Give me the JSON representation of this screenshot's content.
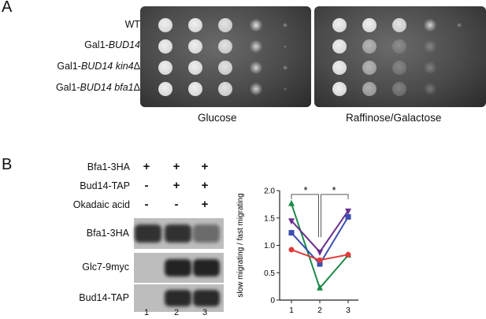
{
  "panel_a": {
    "letter": "A",
    "strains": [
      {
        "prefix": "WT",
        "gene": "",
        "suffix": ""
      },
      {
        "prefix": "Gal1-",
        "gene": "BUD14",
        "suffix": ""
      },
      {
        "prefix": "Gal1-",
        "gene": "BUD14 kin4",
        "suffix": "Δ"
      },
      {
        "prefix": "Gal1-",
        "gene": "BUD14 bfa1",
        "suffix": "Δ"
      }
    ],
    "plates": [
      {
        "label": "Glucose",
        "growth": [
          [
            1,
            1,
            0.9,
            0.7,
            0.2
          ],
          [
            1,
            1,
            0.9,
            0.6,
            0.08
          ],
          [
            1,
            1,
            0.9,
            0.6,
            0.2
          ],
          [
            1,
            1,
            0.9,
            0.6,
            0.1
          ]
        ]
      },
      {
        "label": "Raffinose/Galactose",
        "growth": [
          [
            1,
            1,
            0.9,
            0.6,
            0.2
          ],
          [
            1,
            0.55,
            0.25,
            0.06,
            0
          ],
          [
            1,
            0.55,
            0.2,
            0.05,
            0
          ],
          [
            1,
            0.5,
            0.15,
            0.04,
            0
          ]
        ]
      }
    ]
  },
  "panel_b": {
    "letter": "B",
    "conditions": [
      {
        "label": "Bfa1-3HA",
        "signs": [
          "+",
          "+",
          "+"
        ]
      },
      {
        "label": "Bud14-TAP",
        "signs": [
          "-",
          "+",
          "+"
        ]
      },
      {
        "label": "Okadaic acid",
        "signs": [
          "-",
          "-",
          "+"
        ]
      }
    ],
    "blots": [
      {
        "label": "Bfa1-3HA",
        "bands": [
          0.85,
          0.85,
          0.5
        ]
      },
      {
        "label": "Glc7-9myc",
        "bands": [
          0,
          0.95,
          0.95
        ]
      },
      {
        "label": "Bud14-TAP",
        "bands": [
          0,
          0.9,
          0.9
        ]
      }
    ],
    "lanes": [
      "1",
      "2",
      "3"
    ]
  },
  "chart_data": {
    "type": "line",
    "ylabel": "slow migrating / fast migrating",
    "xlabel": "",
    "categories": [
      "1",
      "2",
      "3"
    ],
    "ylim": [
      0,
      2.0
    ],
    "yticks": [
      "0",
      "0.5",
      "1.0",
      "1.5",
      "2.0"
    ],
    "significance": [
      "*",
      "*"
    ],
    "series": [
      {
        "marker": "triangle-up",
        "color": "#1e8a4a",
        "values": [
          1.76,
          0.22,
          0.82
        ]
      },
      {
        "marker": "triangle-down",
        "color": "#6b2f8e",
        "values": [
          1.45,
          0.88,
          1.63
        ]
      },
      {
        "marker": "square",
        "color": "#3a4fb0",
        "values": [
          1.23,
          0.66,
          1.52
        ]
      },
      {
        "marker": "circle",
        "color": "#e23a3a",
        "values": [
          0.92,
          0.73,
          0.83
        ]
      }
    ]
  }
}
